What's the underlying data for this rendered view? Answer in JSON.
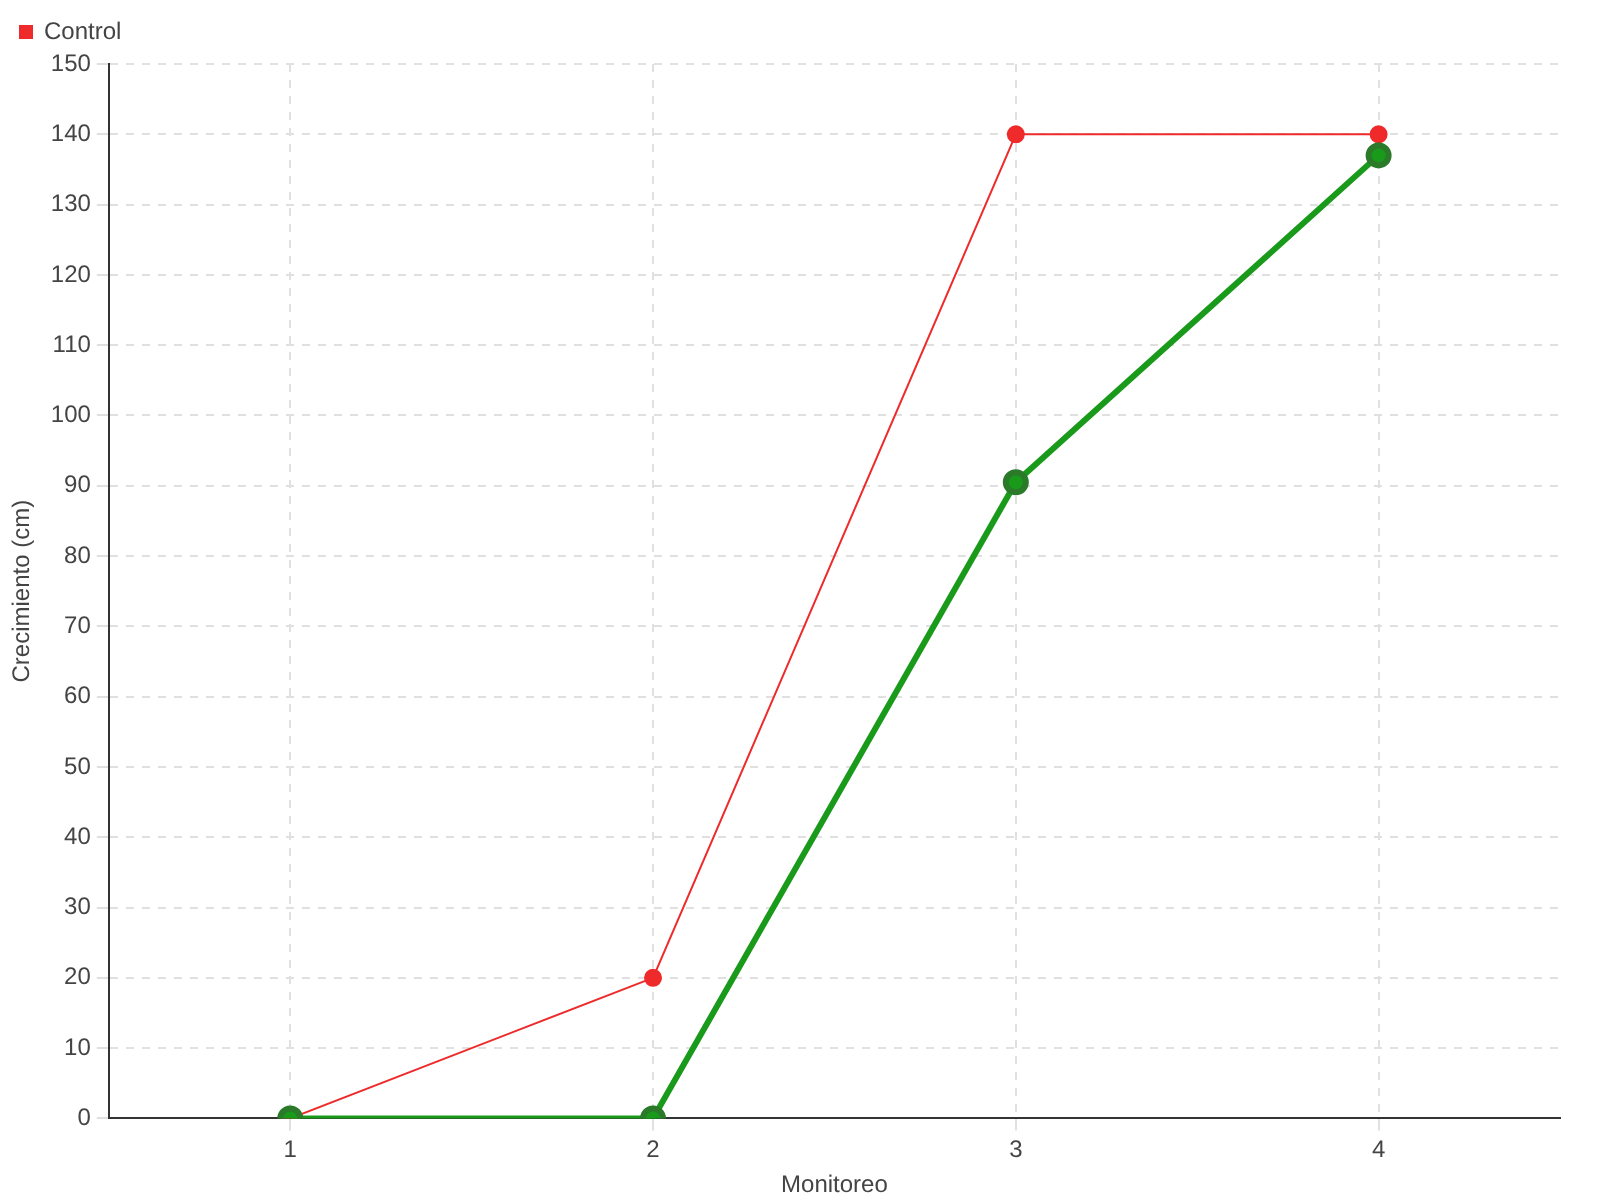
{
  "chart_data": {
    "type": "line",
    "xlabel": "Monitoreo",
    "ylabel": "Crecimiento (cm)",
    "x": [
      1,
      2,
      3,
      4
    ],
    "series": [
      {
        "color": "#1a9a1a",
        "values": [
          0,
          0,
          90.5,
          137
        ]
      },
      {
        "name": "Control",
        "color": "#ee2a2a",
        "values": [
          0,
          20,
          140,
          140
        ]
      }
    ],
    "xlim": [
      0.5,
      4.5
    ],
    "xticks": [
      1,
      2,
      3,
      4
    ],
    "ylim": [
      0,
      150
    ],
    "yticks": [
      0,
      10,
      20,
      30,
      40,
      50,
      60,
      70,
      80,
      90,
      100,
      110,
      120,
      130,
      140,
      150
    ],
    "grid": true,
    "legend": "top left",
    "marker": "circle",
    "line_style": "solid"
  }
}
